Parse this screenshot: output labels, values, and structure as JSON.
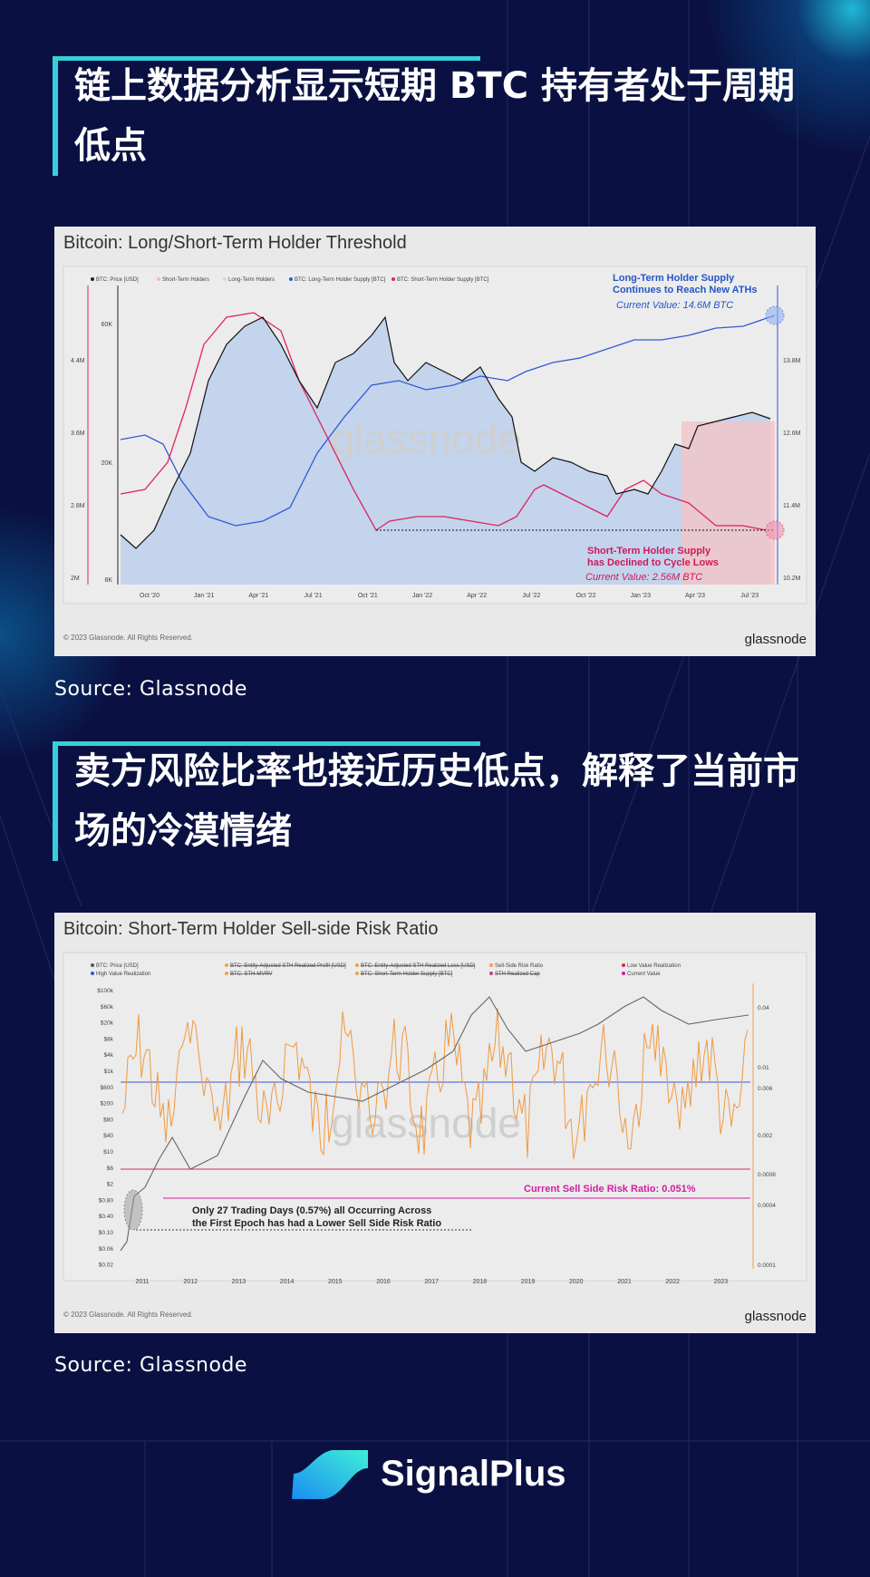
{
  "sections": [
    {
      "heading": "链上数据分析显示短期 BTC 持有者处于周期低点",
      "chart": {
        "title": "Bitcoin: Long/Short-Term Holder Threshold",
        "legend": [
          "BTC: Price [USD]",
          "Short-Term Holders",
          "Long-Term Holders",
          "BTC: Long-Term Holder Supply [BTC]",
          "BTC: Short-Term Holder Supply [BTC]"
        ],
        "x_labels": [
          "Oct '20",
          "Jan '21",
          "Apr '21",
          "Jul '21",
          "Oct '21",
          "Jan '22",
          "Apr '22",
          "Jul '22",
          "Oct '22",
          "Jan '23",
          "Apr '23",
          "Jul '23"
        ],
        "left_ticks": [
          "4.4M",
          "3.6M",
          "2.8M",
          "2M"
        ],
        "price_ticks": [
          "60K",
          "20K",
          "8K"
        ],
        "right_ticks": [
          "13.8M",
          "12.6M",
          "11.4M",
          "10.2M"
        ],
        "annotations": [
          "Long-Term Holder Supply",
          "Continues to Reach New ATHs",
          "Current Value: 14.6M BTC",
          "Short-Term Holder Supply",
          "has Declined to Cycle Lows",
          "Current Value: 2.56M BTC"
        ],
        "watermark": "glassnode",
        "copyright": "© 2023 Glassnode. All Rights Reserved.",
        "brand": "glassnode"
      },
      "source": "Source: Glassnode"
    },
    {
      "heading": "卖方风险比率也接近历史低点，解释了当前市场的冷漠情绪",
      "chart": {
        "title": "Bitcoin: Short-Term Holder Sell-side Risk Ratio",
        "legend": [
          "BTC: Price [USD]",
          "High Value Realization",
          "BTC: Entity-Adjusted STH Realized Profit [USD]",
          "BTC: STH-MVRV",
          "BTC: Entity-Adjusted STH Realized Loss [USD]",
          "BTC: Short-Term Holder Supply [BTC]",
          "Sell-Side Risk Ratio",
          "STH Realized Cap",
          "Low Value Realization",
          "Current Value"
        ],
        "x_labels": [
          "2011",
          "2012",
          "2013",
          "2014",
          "2015",
          "2016",
          "2017",
          "2018",
          "2019",
          "2020",
          "2021",
          "2022",
          "2023"
        ],
        "left_ticks": [
          "$100k",
          "$60k",
          "$20k",
          "$8k",
          "$4k",
          "$1k",
          "$600",
          "$200",
          "$80",
          "$40",
          "$10",
          "$6",
          "$2",
          "$0.80",
          "$0.40",
          "$0.10",
          "$0.06",
          "$0.02"
        ],
        "right_ticks": [
          "0.04",
          "0.01",
          "0.006",
          "0.002",
          "0.0008",
          "0.0004",
          "0.0001"
        ],
        "annotations": [
          "Current Sell Side Risk Ratio: 0.051%",
          "Only 27 Trading Days (0.57%) all Occurring Across",
          "the First Epoch has had a Lower Sell Side Risk Ratio"
        ],
        "watermark": "glassnode",
        "copyright": "© 2023 Glassnode. All Rights Reserved.",
        "brand": "glassnode"
      },
      "source": "Source: Glassnode"
    }
  ],
  "footer": {
    "brand": "SignalPlus"
  }
}
